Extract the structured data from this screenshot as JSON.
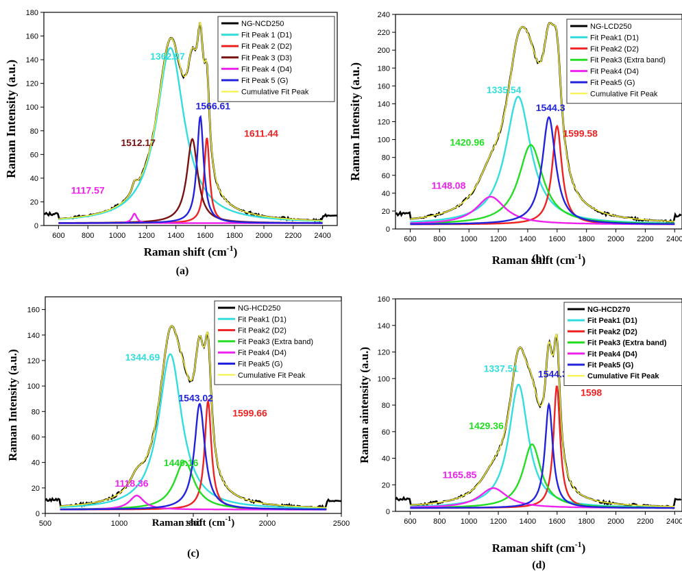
{
  "figure": {
    "panels": [
      {
        "id": "a",
        "label": "(a)",
        "xlabel": "Raman shift (cm",
        "xsup": "-1",
        "xclose": ")",
        "ylabel": "Raman Intensity (a.u.)"
      },
      {
        "id": "b",
        "label": "(b)",
        "xlabel": "Raman shift (cm",
        "xsup": "-1",
        "xclose": ")",
        "ylabel": "Raman Intensity (a.u.)"
      },
      {
        "id": "c",
        "label": "(c)",
        "xlabel": "Raman shift (cm",
        "xsup": "-1",
        "xclose": ")",
        "ylabel": "Raman Intensity (a.u.)"
      },
      {
        "id": "d",
        "label": "(d)",
        "xlabel": "Raman shift (cm",
        "xsup": "-1",
        "xclose": ")",
        "ylabel": "Raman aintensity (a.u.)"
      }
    ]
  },
  "chart_data": [
    {
      "type": "line",
      "panel": "a",
      "legend_position": "top-right",
      "legend_bold": false,
      "xlim": [
        500,
        2500
      ],
      "ylim": [
        0,
        180
      ],
      "xticks": [
        600,
        800,
        1000,
        1200,
        1400,
        1600,
        1800,
        2000,
        2200,
        2400
      ],
      "yticks": [
        0,
        20,
        40,
        60,
        80,
        100,
        120,
        140,
        160,
        180
      ],
      "series": [
        {
          "name": "NG-NCD250",
          "color": "#000000",
          "kind": "experimental"
        },
        {
          "name": "Fit Peak 1 (D1)",
          "color": "#33dddd",
          "center": 1362.97,
          "amplitude": 148,
          "fwhm": 230
        },
        {
          "name": "Fit Peak 2 (D2)",
          "color": "#ee2222",
          "center": 1611.44,
          "amplitude": 72,
          "fwhm": 45
        },
        {
          "name": "Fit Peak 3 (D3)",
          "color": "#7a1010",
          "center": 1512.17,
          "amplitude": 71,
          "fwhm": 90
        },
        {
          "name": "Fit Peak 4 (D4)",
          "color": "#ee22ee",
          "center": 1117.57,
          "amplitude": 8,
          "fwhm": 40
        },
        {
          "name": "Fit Peak 5 (G)",
          "color": "#2222dd",
          "center": 1566.61,
          "amplitude": 90,
          "fwhm": 55
        },
        {
          "name": "Cumulative Fit Peak",
          "color": "#f5f03a",
          "kind": "cumulative"
        }
      ],
      "baseline": 2,
      "annotations": [
        {
          "text": "1362.97",
          "x": 1225,
          "y": 140,
          "color": "#33dddd"
        },
        {
          "text": "1566.61",
          "x": 1535,
          "y": 98,
          "color": "#2222dd"
        },
        {
          "text": "1512.17",
          "x": 1025,
          "y": 67,
          "color": "#7a1010"
        },
        {
          "text": "1611.44",
          "x": 1865,
          "y": 75,
          "color": "#ee2222"
        },
        {
          "text": "1117.57",
          "x": 685,
          "y": 27,
          "color": "#ee22ee"
        }
      ]
    },
    {
      "type": "line",
      "panel": "b",
      "legend_position": "top-right",
      "legend_bold": false,
      "xlim": [
        500,
        2450
      ],
      "ylim": [
        0,
        240
      ],
      "xticks": [
        600,
        800,
        1000,
        1200,
        1400,
        1600,
        1800,
        2000,
        2200,
        2400
      ],
      "yticks": [
        0,
        20,
        40,
        60,
        80,
        100,
        120,
        140,
        160,
        180,
        200,
        220,
        240
      ],
      "series": [
        {
          "name": "NG-LCD250",
          "color": "#000000",
          "kind": "experimental"
        },
        {
          "name": "Fit Peak1 (D1)",
          "color": "#33dddd",
          "center": 1335.54,
          "amplitude": 143,
          "fwhm": 210
        },
        {
          "name": "Fit Peak2 (D2)",
          "color": "#ee2222",
          "center": 1599.58,
          "amplitude": 110,
          "fwhm": 80
        },
        {
          "name": "Fit Peak3 (Extra band)",
          "color": "#22dd22",
          "center": 1420.96,
          "amplitude": 89,
          "fwhm": 200
        },
        {
          "name": "Fit Peak4 (D4)",
          "color": "#ee22ee",
          "center": 1148.08,
          "amplitude": 31,
          "fwhm": 240
        },
        {
          "name": "Fit Peak5 (G)",
          "color": "#2222dd",
          "center": 1544.3,
          "amplitude": 120,
          "fwhm": 110
        },
        {
          "name": "Cumulative Fit Peak",
          "color": "#f5f03a",
          "kind": "cumulative"
        }
      ],
      "baseline": 5,
      "annotations": [
        {
          "text": "1335.54",
          "x": 1120,
          "y": 152,
          "color": "#33dddd"
        },
        {
          "text": "1544.3",
          "x": 1455,
          "y": 132,
          "color": "#2222dd"
        },
        {
          "text": "1420.96",
          "x": 870,
          "y": 93,
          "color": "#22dd22"
        },
        {
          "text": "1599.58",
          "x": 1640,
          "y": 103,
          "color": "#ee2222"
        },
        {
          "text": "1148.08",
          "x": 745,
          "y": 45,
          "color": "#ee22ee"
        }
      ]
    },
    {
      "type": "line",
      "panel": "c",
      "legend_position": "top-right",
      "legend_bold": false,
      "xlim": [
        500,
        2500
      ],
      "ylim": [
        0,
        170
      ],
      "xticks": [
        500,
        1000,
        1500,
        2000,
        2500
      ],
      "yticks": [
        0,
        20,
        40,
        60,
        80,
        100,
        120,
        140,
        160
      ],
      "series": [
        {
          "name": "NG-HCD250",
          "color": "#000000",
          "kind": "experimental"
        },
        {
          "name": "Fit Peak1 (D1)",
          "color": "#33dddd",
          "center": 1344.69,
          "amplitude": 122,
          "fwhm": 190
        },
        {
          "name": "Fit Peak2 (D2)",
          "color": "#ee2222",
          "center": 1599.66,
          "amplitude": 85,
          "fwhm": 55
        },
        {
          "name": "Fit Peak3 (Extra band)",
          "color": "#22dd22",
          "center": 1440.16,
          "amplitude": 38,
          "fwhm": 160
        },
        {
          "name": "Fit Peak4 (D4)",
          "color": "#ee22ee",
          "center": 1118.36,
          "amplitude": 11,
          "fwhm": 120
        },
        {
          "name": "Fit Peak5 (G)",
          "color": "#2222dd",
          "center": 1543.02,
          "amplitude": 83,
          "fwhm": 85
        },
        {
          "name": "Cumulative Fit Peak",
          "color": "#f5f03a",
          "kind": "cumulative"
        }
      ],
      "baseline": 3,
      "annotations": [
        {
          "text": "1344.69",
          "x": 1040,
          "y": 120,
          "color": "#33dddd"
        },
        {
          "text": "1543.02",
          "x": 1400,
          "y": 88,
          "color": "#2222dd"
        },
        {
          "text": "1599.66",
          "x": 1765,
          "y": 76,
          "color": "#ee2222"
        },
        {
          "text": "1440.16",
          "x": 1300,
          "y": 37,
          "color": "#22dd22"
        },
        {
          "text": "1118.36",
          "x": 970,
          "y": 21,
          "color": "#ee22ee"
        }
      ]
    },
    {
      "type": "line",
      "panel": "d",
      "legend_position": "top-right",
      "legend_bold": true,
      "xlim": [
        500,
        2450
      ],
      "ylim": [
        0,
        160
      ],
      "xticks": [
        600,
        800,
        1000,
        1200,
        1400,
        1600,
        1800,
        2000,
        2200,
        2400
      ],
      "yticks": [
        0,
        20,
        40,
        60,
        80,
        100,
        120,
        140,
        160
      ],
      "series": [
        {
          "name": "NG-HCD270",
          "color": "#000000",
          "kind": "experimental"
        },
        {
          "name": "Fit Peak1 (D1)",
          "color": "#33dddd",
          "center": 1337.51,
          "amplitude": 93,
          "fwhm": 160
        },
        {
          "name": "Fit Peak2 (D2)",
          "color": "#ee2222",
          "center": 1598,
          "amplitude": 92,
          "fwhm": 55
        },
        {
          "name": "Fit Peak3 (Extra band)",
          "color": "#22dd22",
          "center": 1429.36,
          "amplitude": 48,
          "fwhm": 150
        },
        {
          "name": "Fit Peak4 (D4)",
          "color": "#ee22ee",
          "center": 1165.85,
          "amplitude": 15,
          "fwhm": 230
        },
        {
          "name": "Fit Peak5 (G)",
          "color": "#2222dd",
          "center": 1544.3,
          "amplitude": 78,
          "fwhm": 65
        },
        {
          "name": "Cumulative Fit Peak",
          "color": "#f5f03a",
          "kind": "cumulative"
        }
      ],
      "baseline": 2.5,
      "annotations": [
        {
          "text": "1337.51",
          "x": 1100,
          "y": 105,
          "color": "#33dddd"
        },
        {
          "text": "1544.3",
          "x": 1470,
          "y": 101,
          "color": "#2222dd"
        },
        {
          "text": "1598",
          "x": 1760,
          "y": 87,
          "color": "#ee2222"
        },
        {
          "text": "1429.36",
          "x": 1000,
          "y": 62,
          "color": "#22dd22"
        },
        {
          "text": "1165.85",
          "x": 820,
          "y": 25,
          "color": "#ee22ee"
        }
      ]
    }
  ]
}
